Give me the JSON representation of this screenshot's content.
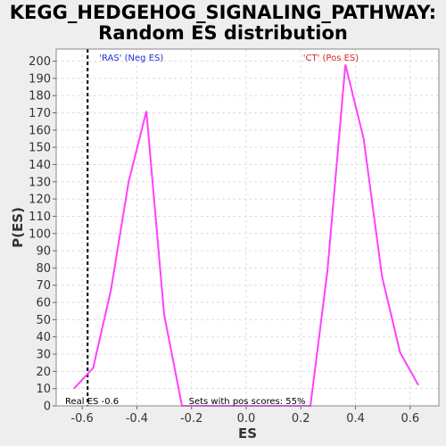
{
  "chart_data": {
    "type": "line",
    "title_line1": "KEGG_HEDGEHOG_SIGNALING_PATHWAY:",
    "title_line2": "Random ES distribution",
    "xlabel": "ES",
    "ylabel": "P(ES)",
    "xlim": [
      -0.695,
      0.705
    ],
    "ylim": [
      0,
      207
    ],
    "xticks": [
      -0.6,
      -0.4,
      -0.2,
      0.0,
      0.2,
      0.4,
      0.6
    ],
    "xtick_labels": [
      "-0.6",
      "-0.4",
      "-0.2",
      "0.0",
      "0.2",
      "0.4",
      "0.6"
    ],
    "yticks": [
      0,
      10,
      20,
      30,
      40,
      50,
      60,
      70,
      80,
      90,
      100,
      110,
      120,
      130,
      140,
      150,
      160,
      170,
      180,
      190,
      200
    ],
    "grid": true,
    "series": [
      {
        "color": "#ff40ff",
        "points": [
          [
            -0.63,
            10
          ],
          [
            -0.56,
            22
          ],
          [
            -0.495,
            67
          ],
          [
            -0.43,
            130
          ],
          [
            -0.365,
            171
          ],
          [
            -0.3,
            53
          ],
          [
            -0.235,
            0
          ],
          [
            0.235,
            0
          ],
          [
            0.297,
            78
          ],
          [
            0.363,
            198
          ],
          [
            0.43,
            155
          ],
          [
            0.497,
            75
          ],
          [
            0.563,
            31
          ],
          [
            0.63,
            12
          ]
        ]
      }
    ],
    "real_es": -0.58,
    "annotations": {
      "neg_label": "'RAS' (Neg ES)",
      "neg_color": "#2233cc",
      "pos_label": "'CT' (Pos ES)",
      "pos_color": "#dd2222",
      "real_es_label": "Real ES -0.6",
      "pos_scores_label": "Sets with pos scores: 55%"
    }
  }
}
